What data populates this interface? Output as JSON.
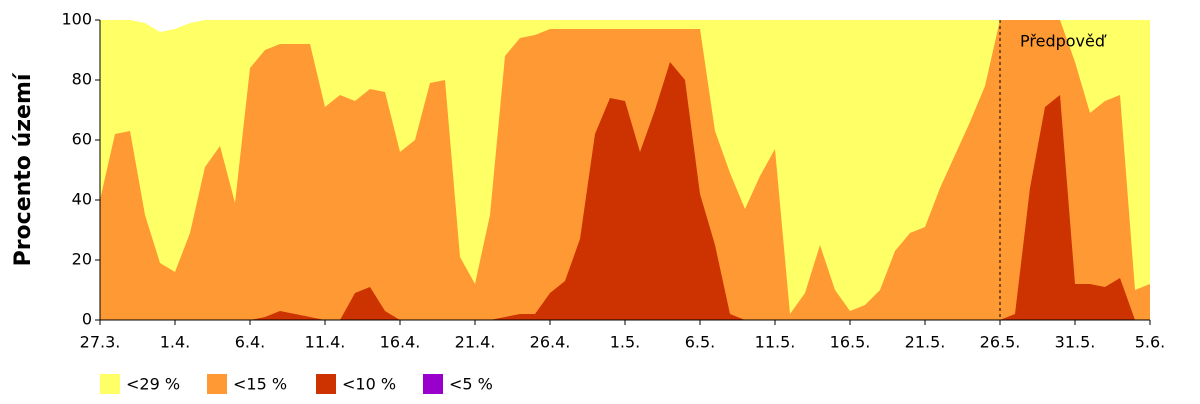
{
  "chart_data": {
    "type": "area",
    "y_label": "Procento území",
    "annotation": {
      "text": "Předpověď",
      "x": "26.5."
    },
    "categories": [
      "27.3.",
      null,
      null,
      null,
      null,
      "1.4.",
      null,
      null,
      null,
      null,
      "6.4.",
      null,
      null,
      null,
      null,
      "11.4.",
      null,
      null,
      null,
      null,
      "16.4.",
      null,
      null,
      null,
      null,
      "21.4.",
      null,
      null,
      null,
      null,
      "26.4.",
      null,
      null,
      null,
      null,
      "1.5.",
      null,
      null,
      null,
      null,
      "6.5.",
      null,
      null,
      null,
      null,
      "11.5.",
      null,
      null,
      null,
      null,
      "16.5.",
      null,
      null,
      null,
      null,
      "21.5.",
      null,
      null,
      null,
      null,
      "26.5.",
      null,
      null,
      null,
      null,
      "31.5.",
      null,
      null,
      null,
      null,
      "5.6."
    ],
    "series": [
      {
        "name": "<29 %",
        "color": "#ffff66",
        "values": [
          100,
          100,
          100,
          99,
          96,
          97,
          99,
          100,
          100,
          100,
          100,
          100,
          100,
          100,
          100,
          100,
          100,
          100,
          100,
          100,
          100,
          100,
          100,
          100,
          100,
          100,
          100,
          100,
          100,
          100,
          100,
          100,
          100,
          100,
          100,
          100,
          100,
          100,
          100,
          100,
          100,
          100,
          100,
          100,
          100,
          100,
          100,
          100,
          100,
          100,
          100,
          100,
          100,
          100,
          100,
          100,
          100,
          100,
          100,
          100,
          100,
          100,
          100,
          100,
          100,
          100,
          100,
          100,
          100,
          100,
          100
        ]
      },
      {
        "name": "<15 %",
        "color": "#ff9933",
        "values": [
          40,
          62,
          63,
          35,
          19,
          16,
          29,
          51,
          58,
          39,
          84,
          90,
          92,
          92,
          92,
          71,
          75,
          73,
          77,
          76,
          56,
          60,
          79,
          80,
          21,
          12,
          35,
          88,
          94,
          95,
          97,
          97,
          97,
          97,
          97,
          97,
          97,
          97,
          97,
          97,
          97,
          63,
          49,
          37,
          48,
          57,
          2,
          9,
          25,
          10,
          3,
          5,
          10,
          23,
          29,
          31,
          44,
          55,
          66,
          78,
          100,
          100,
          100,
          100,
          100,
          86,
          69,
          73,
          75,
          10,
          12
        ]
      },
      {
        "name": "<10 %",
        "color": "#cc3300",
        "values": [
          0,
          0,
          0,
          0,
          0,
          0,
          0,
          0,
          0,
          0,
          0,
          1,
          3,
          2,
          1,
          0,
          0,
          9,
          11,
          3,
          0,
          0,
          0,
          0,
          0,
          0,
          0,
          1,
          2,
          2,
          9,
          13,
          27,
          62,
          74,
          73,
          56,
          70,
          86,
          80,
          42,
          25,
          2,
          0,
          0,
          0,
          0,
          0,
          0,
          0,
          0,
          0,
          0,
          0,
          0,
          0,
          0,
          0,
          0,
          0,
          0,
          2,
          44,
          71,
          75,
          12,
          12,
          11,
          14,
          0,
          0
        ]
      },
      {
        "name": "<5 %",
        "color": "#9900cc",
        "values": [
          0,
          0,
          0,
          0,
          0,
          0,
          0,
          0,
          0,
          0,
          0,
          0,
          0,
          0,
          0,
          0,
          0,
          0,
          0,
          0,
          0,
          0,
          0,
          0,
          0,
          0,
          0,
          0,
          0,
          0,
          0,
          0,
          0,
          0,
          0,
          0,
          0,
          0,
          0,
          0,
          0,
          0,
          0,
          0,
          0,
          0,
          0,
          0,
          0,
          0,
          0,
          0,
          0,
          0,
          0,
          0,
          0,
          0,
          0,
          0,
          0,
          0,
          0,
          0,
          0,
          0,
          0,
          0,
          0,
          0,
          0
        ]
      }
    ],
    "ylim": [
      0,
      100
    ],
    "yticks": [
      0,
      20,
      40,
      60,
      80,
      100
    ],
    "grid": false
  }
}
